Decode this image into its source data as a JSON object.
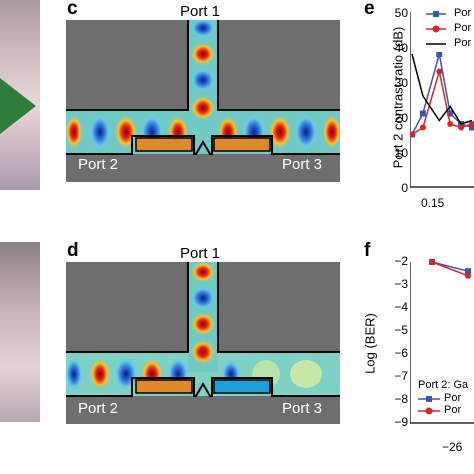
{
  "panels": {
    "c": {
      "letter": "c",
      "top_port": "Port 1",
      "left_port": "Port 2",
      "right_port": "Port 3"
    },
    "d": {
      "letter": "d",
      "top_port": "Port 1",
      "left_port": "Port 2",
      "right_port": "Port 3"
    },
    "e": {
      "letter": "e",
      "ylabel": "Port 2 contrast ratio (dB)",
      "yticks": [
        "50",
        "40",
        "30",
        "20",
        "10",
        "0"
      ],
      "xticks": [
        "0.15"
      ],
      "legend": [
        "Por",
        "Por",
        "Por"
      ]
    },
    "f": {
      "letter": "f",
      "ylabel": "Log (BER)",
      "yticks": [
        "−2",
        "−3",
        "−4",
        "−5",
        "−6",
        "−7",
        "−8",
        "−9"
      ],
      "xticks": [
        "−26"
      ],
      "legend_title": "Port 2: Ga",
      "legend": [
        "Por",
        "Por"
      ]
    }
  },
  "colors": {
    "waveguide_bg": "#6e6e6e",
    "field_red": "#d7191c",
    "field_blue": "#2c7bb6",
    "field_cyan": "#4fc3e8",
    "orange_pad": "#e0892b",
    "blue_pad": "#1f9fd8",
    "series_blue": "#3a55b4",
    "series_red": "#d62728",
    "series_black": "#000000"
  },
  "chart_data": [
    {
      "type": "line",
      "panel": "e",
      "ylabel": "Port 2 contrast ratio (dB)",
      "ylim": [
        0,
        50
      ],
      "series": [
        {
          "marker": "square",
          "color": "#3a55b4",
          "x": [
            0.1,
            0.12,
            0.15,
            0.17,
            0.19,
            0.21
          ],
          "y": [
            15,
            21,
            38,
            21,
            18,
            17
          ]
        },
        {
          "marker": "circle",
          "color": "#d62728",
          "x": [
            0.1,
            0.12,
            0.15,
            0.17,
            0.19,
            0.21
          ],
          "y": [
            15,
            17,
            33,
            18,
            17,
            18
          ]
        },
        {
          "marker": "none",
          "color": "#000000",
          "x": [
            0.1,
            0.12,
            0.15,
            0.17,
            0.19,
            0.21
          ],
          "y": [
            38,
            26,
            19,
            23,
            18,
            19
          ]
        }
      ]
    },
    {
      "type": "line",
      "panel": "f",
      "ylabel": "Log (BER)",
      "ylim": [
        -9,
        -2
      ],
      "series": [
        {
          "marker": "square",
          "color": "#3a55b4",
          "x": [
            -28,
            -24
          ],
          "y": [
            -2,
            -2.4
          ]
        },
        {
          "marker": "circle",
          "color": "#d62728",
          "x": [
            -28,
            -24
          ],
          "y": [
            -2,
            -2.6
          ]
        }
      ]
    }
  ]
}
